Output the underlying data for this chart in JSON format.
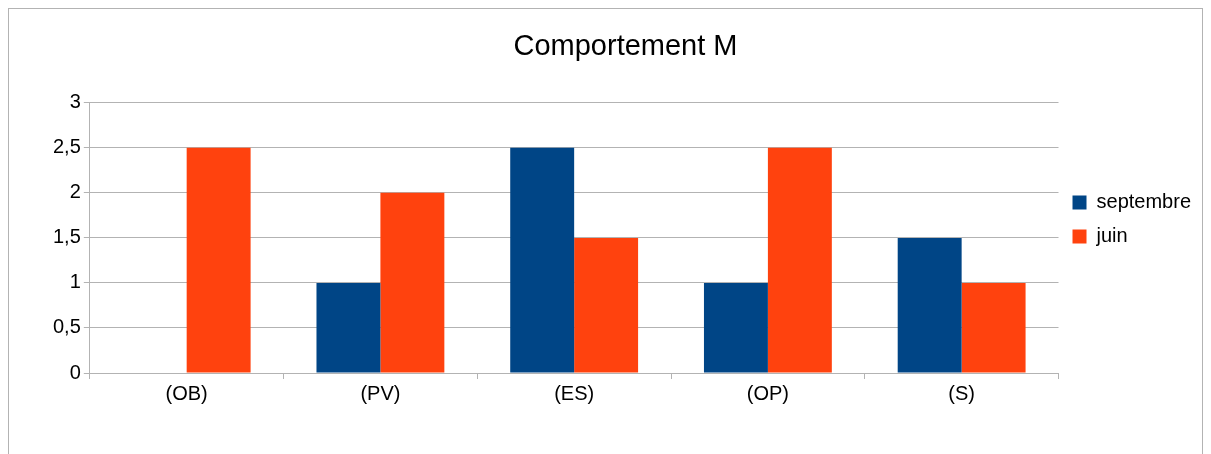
{
  "chart_data": {
    "type": "bar",
    "title": "Comportement M",
    "categories": [
      "(OB)",
      "(PV)",
      "(ES)",
      "(OP)",
      "(S)"
    ],
    "series": [
      {
        "name": "septembre",
        "color": "#004586",
        "values": [
          0,
          1,
          2.5,
          1,
          1.5
        ]
      },
      {
        "name": "juin",
        "color": "#ff420e",
        "values": [
          2.5,
          2,
          1.5,
          2.5,
          1
        ]
      }
    ],
    "ylim": [
      0,
      3
    ],
    "yticks": [
      0,
      {
        "value": 0.5,
        "label": "0,5"
      },
      1,
      {
        "value": 1.5,
        "label": "1,5"
      },
      2,
      {
        "value": 2.5,
        "label": "2,5"
      },
      3
    ],
    "grid": "y",
    "legend": "right"
  }
}
